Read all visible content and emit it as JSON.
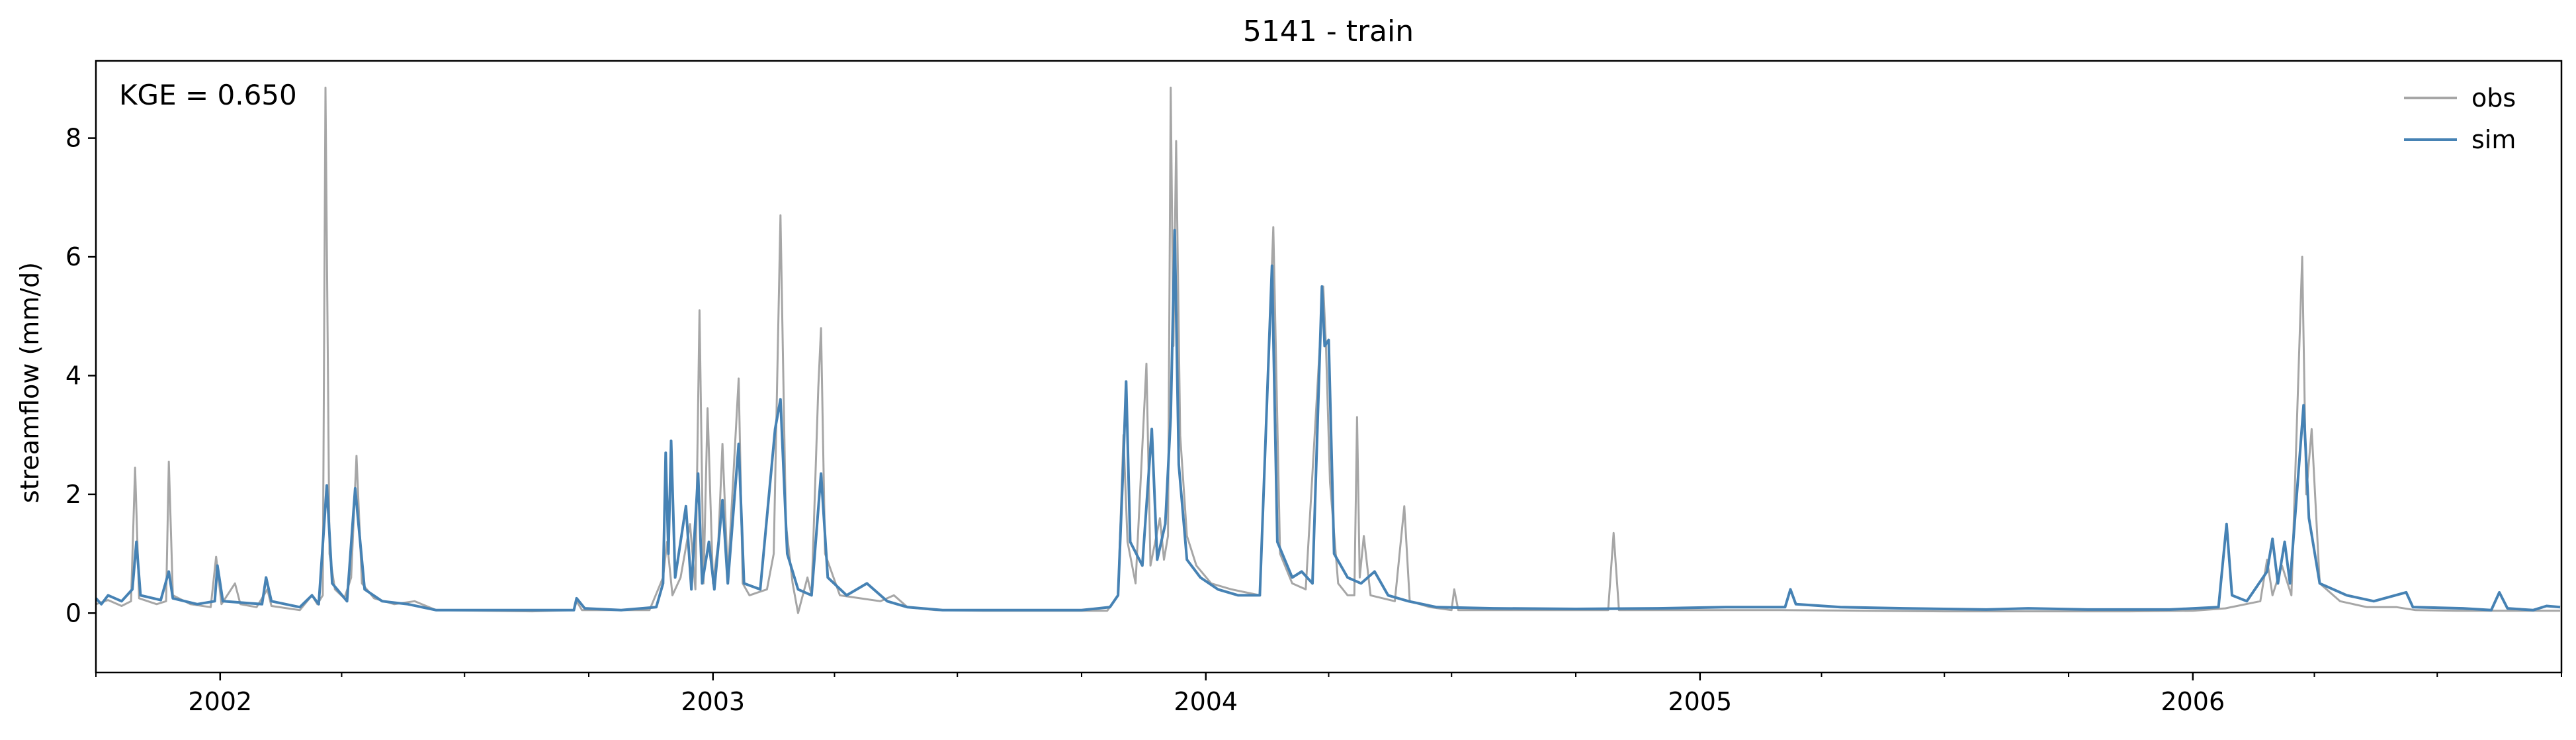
{
  "chart_data": {
    "type": "line",
    "title": "5141 - train",
    "ylabel": "streamflow (mm/d)",
    "xlabel": "",
    "annotation": "KGE = 0.650",
    "xlim": [
      "2001-10-01",
      "2006-10-01"
    ],
    "ylim": [
      -1.0,
      9.3
    ],
    "x_ticks": [
      "2002-01-01",
      "2003-01-01",
      "2004-01-01",
      "2005-01-01",
      "2006-01-01"
    ],
    "x_tick_labels": [
      "2002",
      "2003",
      "2004",
      "2005",
      "2006"
    ],
    "y_ticks": [
      0,
      2,
      4,
      6,
      8
    ],
    "y_tick_labels": [
      "0",
      "2",
      "4",
      "6",
      "8"
    ],
    "legend": {
      "position": "top-right"
    },
    "grid": false,
    "series": [
      {
        "name": "obs",
        "color": "#a6a6a6",
        "points": [
          [
            "2001-10-01",
            0.15
          ],
          [
            "2001-10-10",
            0.22
          ],
          [
            "2001-10-20",
            0.12
          ],
          [
            "2001-10-27",
            0.2
          ],
          [
            "2001-10-30",
            2.45
          ],
          [
            "2001-11-02",
            0.25
          ],
          [
            "2001-11-15",
            0.15
          ],
          [
            "2001-11-22",
            0.2
          ],
          [
            "2001-11-24",
            2.55
          ],
          [
            "2001-11-27",
            0.3
          ],
          [
            "2001-12-10",
            0.15
          ],
          [
            "2001-12-25",
            0.1
          ],
          [
            "2001-12-29",
            0.95
          ],
          [
            "2002-01-02",
            0.15
          ],
          [
            "2002-01-12",
            0.5
          ],
          [
            "2002-01-16",
            0.15
          ],
          [
            "2002-01-28",
            0.1
          ],
          [
            "2002-02-05",
            0.4
          ],
          [
            "2002-02-08",
            0.12
          ],
          [
            "2002-03-01",
            0.05
          ],
          [
            "2002-03-10",
            0.3
          ],
          [
            "2002-03-14",
            0.15
          ],
          [
            "2002-03-18",
            0.3
          ],
          [
            "2002-03-20",
            8.85
          ],
          [
            "2002-03-23",
            1.0
          ],
          [
            "2002-03-27",
            0.4
          ],
          [
            "2002-04-03",
            0.25
          ],
          [
            "2002-04-08",
            0.6
          ],
          [
            "2002-04-12",
            2.65
          ],
          [
            "2002-04-16",
            0.5
          ],
          [
            "2002-04-25",
            0.25
          ],
          [
            "2002-05-10",
            0.15
          ],
          [
            "2002-05-25",
            0.2
          ],
          [
            "2002-06-10",
            0.05
          ],
          [
            "2002-07-15",
            0.04
          ],
          [
            "2002-08-20",
            0.03
          ],
          [
            "2002-09-20",
            0.05
          ],
          [
            "2002-09-22",
            0.2
          ],
          [
            "2002-09-26",
            0.05
          ],
          [
            "2002-10-20",
            0.05
          ],
          [
            "2002-11-15",
            0.05
          ],
          [
            "2002-11-25",
            0.6
          ],
          [
            "2002-11-28",
            1.2
          ],
          [
            "2002-12-02",
            0.3
          ],
          [
            "2002-12-08",
            0.6
          ],
          [
            "2002-12-15",
            1.5
          ],
          [
            "2002-12-19",
            0.4
          ],
          [
            "2002-12-22",
            5.1
          ],
          [
            "2002-12-25",
            0.5
          ],
          [
            "2002-12-28",
            3.45
          ],
          [
            "2003-01-01",
            0.5
          ],
          [
            "2003-01-05",
            1.2
          ],
          [
            "2003-01-08",
            2.85
          ],
          [
            "2003-01-12",
            0.6
          ],
          [
            "2003-01-20",
            3.95
          ],
          [
            "2003-01-23",
            0.5
          ],
          [
            "2003-01-28",
            0.3
          ],
          [
            "2003-02-10",
            0.4
          ],
          [
            "2003-02-15",
            1.0
          ],
          [
            "2003-02-20",
            6.7
          ],
          [
            "2003-02-24",
            1.5
          ],
          [
            "2003-03-01",
            0.5
          ],
          [
            "2003-03-05",
            0.0
          ],
          [
            "2003-03-12",
            0.6
          ],
          [
            "2003-03-15",
            0.3
          ],
          [
            "2003-03-20",
            3.8
          ],
          [
            "2003-03-22",
            4.8
          ],
          [
            "2003-03-25",
            1.0
          ],
          [
            "2003-04-05",
            0.3
          ],
          [
            "2003-04-20",
            0.25
          ],
          [
            "2003-05-05",
            0.2
          ],
          [
            "2003-05-15",
            0.3
          ],
          [
            "2003-05-25",
            0.1
          ],
          [
            "2003-06-15",
            0.05
          ],
          [
            "2003-07-20",
            0.04
          ],
          [
            "2003-08-25",
            0.04
          ],
          [
            "2003-09-30",
            0.04
          ],
          [
            "2003-10-20",
            0.04
          ],
          [
            "2003-10-28",
            0.3
          ],
          [
            "2003-11-01",
            3.0
          ],
          [
            "2003-11-04",
            1.2
          ],
          [
            "2003-11-10",
            0.5
          ],
          [
            "2003-11-18",
            4.2
          ],
          [
            "2003-11-21",
            0.8
          ],
          [
            "2003-11-28",
            1.6
          ],
          [
            "2003-12-01",
            0.9
          ],
          [
            "2003-12-04",
            1.3
          ],
          [
            "2003-12-06",
            8.85
          ],
          [
            "2003-12-08",
            4.5
          ],
          [
            "2003-12-10",
            7.95
          ],
          [
            "2003-12-13",
            3.0
          ],
          [
            "2003-12-18",
            1.3
          ],
          [
            "2003-12-25",
            0.8
          ],
          [
            "2004-01-05",
            0.5
          ],
          [
            "2004-01-20",
            0.4
          ],
          [
            "2004-02-10",
            0.3
          ],
          [
            "2004-02-20",
            6.5
          ],
          [
            "2004-02-25",
            1.0
          ],
          [
            "2004-03-05",
            0.5
          ],
          [
            "2004-03-15",
            0.4
          ],
          [
            "2004-03-28",
            5.5
          ],
          [
            "2004-03-30",
            4.5
          ],
          [
            "2004-04-02",
            2.2
          ],
          [
            "2004-04-08",
            0.5
          ],
          [
            "2004-04-15",
            0.3
          ],
          [
            "2004-04-20",
            0.3
          ],
          [
            "2004-04-22",
            3.3
          ],
          [
            "2004-04-24",
            0.6
          ],
          [
            "2004-04-27",
            1.3
          ],
          [
            "2004-05-02",
            0.3
          ],
          [
            "2004-05-20",
            0.2
          ],
          [
            "2004-05-27",
            1.8
          ],
          [
            "2004-05-31",
            0.2
          ],
          [
            "2004-06-15",
            0.1
          ],
          [
            "2004-07-01",
            0.05
          ],
          [
            "2004-07-03",
            0.4
          ],
          [
            "2004-07-06",
            0.05
          ],
          [
            "2004-08-20",
            0.05
          ],
          [
            "2004-10-25",
            0.05
          ],
          [
            "2004-10-29",
            1.35
          ],
          [
            "2004-11-02",
            0.05
          ],
          [
            "2004-12-10",
            0.05
          ],
          [
            "2005-01-20",
            0.05
          ],
          [
            "2005-03-01",
            0.05
          ],
          [
            "2005-05-01",
            0.04
          ],
          [
            "2005-07-01",
            0.03
          ],
          [
            "2005-09-15",
            0.03
          ],
          [
            "2005-11-15",
            0.03
          ],
          [
            "2006-01-01",
            0.04
          ],
          [
            "2006-01-25",
            0.08
          ],
          [
            "2006-02-20",
            0.2
          ],
          [
            "2006-02-25",
            0.9
          ],
          [
            "2006-03-01",
            0.3
          ],
          [
            "2006-03-08",
            0.8
          ],
          [
            "2006-03-15",
            0.3
          ],
          [
            "2006-03-23",
            6.0
          ],
          [
            "2006-03-26",
            2.0
          ],
          [
            "2006-03-30",
            3.1
          ],
          [
            "2006-04-05",
            0.5
          ],
          [
            "2006-04-20",
            0.2
          ],
          [
            "2006-05-10",
            0.1
          ],
          [
            "2006-06-01",
            0.1
          ],
          [
            "2006-06-15",
            0.05
          ],
          [
            "2006-07-15",
            0.04
          ],
          [
            "2006-09-30",
            0.04
          ]
        ]
      },
      {
        "name": "sim",
        "color": "#4682b4",
        "points": [
          [
            "2001-10-01",
            0.25
          ],
          [
            "2001-10-05",
            0.15
          ],
          [
            "2001-10-10",
            0.3
          ],
          [
            "2001-10-20",
            0.2
          ],
          [
            "2001-10-28",
            0.4
          ],
          [
            "2001-10-31",
            1.2
          ],
          [
            "2001-11-03",
            0.3
          ],
          [
            "2001-11-18",
            0.22
          ],
          [
            "2001-11-24",
            0.7
          ],
          [
            "2001-11-27",
            0.25
          ],
          [
            "2001-12-15",
            0.15
          ],
          [
            "2001-12-28",
            0.2
          ],
          [
            "2001-12-30",
            0.8
          ],
          [
            "2002-01-03",
            0.2
          ],
          [
            "2002-01-15",
            0.18
          ],
          [
            "2002-02-01",
            0.15
          ],
          [
            "2002-02-04",
            0.6
          ],
          [
            "2002-02-08",
            0.2
          ],
          [
            "2002-03-01",
            0.1
          ],
          [
            "2002-03-10",
            0.3
          ],
          [
            "2002-03-15",
            0.15
          ],
          [
            "2002-03-21",
            2.15
          ],
          [
            "2002-03-25",
            0.5
          ],
          [
            "2002-04-05",
            0.2
          ],
          [
            "2002-04-11",
            2.1
          ],
          [
            "2002-04-18",
            0.4
          ],
          [
            "2002-05-01",
            0.2
          ],
          [
            "2002-05-20",
            0.15
          ],
          [
            "2002-06-10",
            0.05
          ],
          [
            "2002-07-15",
            0.05
          ],
          [
            "2002-08-20",
            0.05
          ],
          [
            "2002-09-20",
            0.05
          ],
          [
            "2002-09-22",
            0.25
          ],
          [
            "2002-09-28",
            0.08
          ],
          [
            "2002-10-25",
            0.05
          ],
          [
            "2002-11-20",
            0.1
          ],
          [
            "2002-11-25",
            0.5
          ],
          [
            "2002-11-27",
            2.7
          ],
          [
            "2002-11-29",
            1.0
          ],
          [
            "2002-12-01",
            2.9
          ],
          [
            "2002-12-04",
            0.6
          ],
          [
            "2002-12-12",
            1.8
          ],
          [
            "2002-12-16",
            0.4
          ],
          [
            "2002-12-21",
            2.35
          ],
          [
            "2002-12-24",
            0.5
          ],
          [
            "2002-12-29",
            1.2
          ],
          [
            "2003-01-02",
            0.4
          ],
          [
            "2003-01-08",
            1.9
          ],
          [
            "2003-01-12",
            0.5
          ],
          [
            "2003-01-20",
            2.85
          ],
          [
            "2003-01-24",
            0.5
          ],
          [
            "2003-02-05",
            0.4
          ],
          [
            "2003-02-16",
            3.1
          ],
          [
            "2003-02-20",
            3.6
          ],
          [
            "2003-02-25",
            1.0
          ],
          [
            "2003-03-05",
            0.4
          ],
          [
            "2003-03-15",
            0.3
          ],
          [
            "2003-03-22",
            2.35
          ],
          [
            "2003-03-27",
            0.6
          ],
          [
            "2003-04-10",
            0.3
          ],
          [
            "2003-04-25",
            0.5
          ],
          [
            "2003-05-10",
            0.2
          ],
          [
            "2003-05-25",
            0.1
          ],
          [
            "2003-06-20",
            0.05
          ],
          [
            "2003-07-25",
            0.05
          ],
          [
            "2003-08-30",
            0.05
          ],
          [
            "2003-10-01",
            0.05
          ],
          [
            "2003-10-22",
            0.1
          ],
          [
            "2003-10-28",
            0.3
          ],
          [
            "2003-11-01",
            2.6
          ],
          [
            "2003-11-03",
            3.9
          ],
          [
            "2003-11-06",
            1.2
          ],
          [
            "2003-11-15",
            0.8
          ],
          [
            "2003-11-22",
            3.1
          ],
          [
            "2003-11-26",
            0.9
          ],
          [
            "2003-12-02",
            1.5
          ],
          [
            "2003-12-06",
            3.3
          ],
          [
            "2003-12-09",
            6.45
          ],
          [
            "2003-12-12",
            2.5
          ],
          [
            "2003-12-18",
            0.9
          ],
          [
            "2003-12-28",
            0.6
          ],
          [
            "2004-01-10",
            0.4
          ],
          [
            "2004-01-25",
            0.3
          ],
          [
            "2004-02-10",
            0.3
          ],
          [
            "2004-02-19",
            5.85
          ],
          [
            "2004-02-23",
            1.2
          ],
          [
            "2004-03-05",
            0.6
          ],
          [
            "2004-03-12",
            0.7
          ],
          [
            "2004-03-20",
            0.5
          ],
          [
            "2004-03-27",
            5.5
          ],
          [
            "2004-03-29",
            4.5
          ],
          [
            "2004-04-01",
            4.6
          ],
          [
            "2004-04-05",
            1.0
          ],
          [
            "2004-04-15",
            0.6
          ],
          [
            "2004-04-25",
            0.5
          ],
          [
            "2004-05-05",
            0.7
          ],
          [
            "2004-05-15",
            0.3
          ],
          [
            "2004-05-30",
            0.2
          ],
          [
            "2004-06-20",
            0.1
          ],
          [
            "2004-08-01",
            0.08
          ],
          [
            "2004-10-01",
            0.07
          ],
          [
            "2004-12-01",
            0.08
          ],
          [
            "2005-01-20",
            0.1
          ],
          [
            "2005-02-20",
            0.1
          ],
          [
            "2005-03-05",
            0.1
          ],
          [
            "2005-03-09",
            0.4
          ],
          [
            "2005-03-13",
            0.15
          ],
          [
            "2005-04-15",
            0.1
          ],
          [
            "2005-06-01",
            0.08
          ],
          [
            "2005-08-01",
            0.06
          ],
          [
            "2005-09-01",
            0.08
          ],
          [
            "2005-10-15",
            0.06
          ],
          [
            "2005-12-15",
            0.06
          ],
          [
            "2006-01-20",
            0.1
          ],
          [
            "2006-01-26",
            1.5
          ],
          [
            "2006-01-30",
            0.3
          ],
          [
            "2006-02-10",
            0.2
          ],
          [
            "2006-02-25",
            0.7
          ],
          [
            "2006-03-01",
            1.25
          ],
          [
            "2006-03-05",
            0.5
          ],
          [
            "2006-03-10",
            1.2
          ],
          [
            "2006-03-14",
            0.5
          ],
          [
            "2006-03-24",
            3.5
          ],
          [
            "2006-03-28",
            1.6
          ],
          [
            "2006-04-05",
            0.5
          ],
          [
            "2006-04-25",
            0.3
          ],
          [
            "2006-05-15",
            0.2
          ],
          [
            "2006-06-08",
            0.35
          ],
          [
            "2006-06-13",
            0.1
          ],
          [
            "2006-07-20",
            0.08
          ],
          [
            "2006-08-10",
            0.05
          ],
          [
            "2006-08-16",
            0.35
          ],
          [
            "2006-08-22",
            0.08
          ],
          [
            "2006-09-10",
            0.05
          ],
          [
            "2006-09-20",
            0.12
          ],
          [
            "2006-09-30",
            0.1
          ]
        ]
      }
    ]
  }
}
